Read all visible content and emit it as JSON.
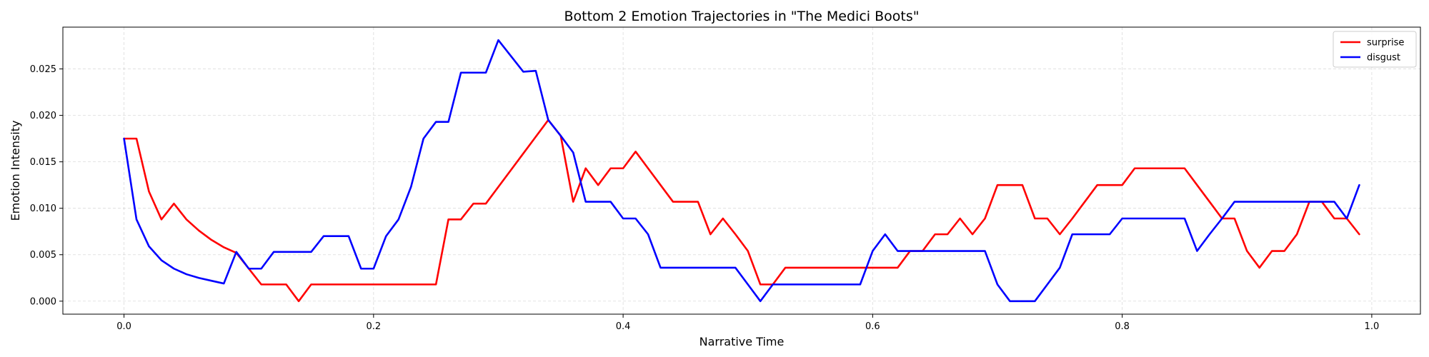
{
  "chart_data": {
    "type": "line",
    "title": "Bottom 2 Emotion Trajectories in \"The Medici Boots\"",
    "xlabel": "Narrative Time",
    "ylabel": "Emotion Intensity",
    "xlim": [
      -0.049,
      1.039
    ],
    "ylim": [
      -0.0014,
      0.0295
    ],
    "xticks": [
      0.0,
      0.2,
      0.4,
      0.6,
      0.8,
      1.0
    ],
    "xtick_labels": [
      "0.0",
      "0.2",
      "0.4",
      "0.6",
      "0.8",
      "1.0"
    ],
    "yticks": [
      0.0,
      0.005,
      0.01,
      0.015,
      0.02,
      0.025
    ],
    "ytick_labels": [
      "0.000",
      "0.005",
      "0.010",
      "0.015",
      "0.020",
      "0.025"
    ],
    "grid": true,
    "legend_position": "top-right",
    "x": [
      0.0,
      0.01,
      0.02,
      0.03,
      0.04,
      0.05,
      0.06,
      0.07,
      0.08,
      0.09,
      0.1,
      0.11,
      0.12,
      0.13,
      0.14,
      0.15,
      0.16,
      0.17,
      0.18,
      0.19,
      0.2,
      0.21,
      0.22,
      0.23,
      0.24,
      0.25,
      0.26,
      0.27,
      0.28,
      0.29,
      0.3,
      0.31,
      0.32,
      0.33,
      0.34,
      0.35,
      0.36,
      0.37,
      0.38,
      0.39,
      0.4,
      0.41,
      0.42,
      0.43,
      0.44,
      0.45,
      0.46,
      0.47,
      0.48,
      0.49,
      0.5,
      0.51,
      0.52,
      0.53,
      0.54,
      0.55,
      0.56,
      0.57,
      0.58,
      0.59,
      0.6,
      0.61,
      0.62,
      0.63,
      0.64,
      0.65,
      0.66,
      0.67,
      0.68,
      0.69,
      0.7,
      0.71,
      0.72,
      0.73,
      0.74,
      0.75,
      0.76,
      0.77,
      0.78,
      0.79,
      0.8,
      0.81,
      0.82,
      0.83,
      0.84,
      0.85,
      0.86,
      0.87,
      0.88,
      0.89,
      0.9,
      0.91,
      0.92,
      0.93,
      0.94,
      0.95,
      0.96,
      0.97,
      0.98,
      0.99
    ],
    "series": [
      {
        "name": "surprise",
        "color": "#ff0000",
        "values": [
          0.0175,
          0.0175,
          0.0118,
          0.0088,
          0.0105,
          0.0088,
          0.0076,
          0.0066,
          0.0058,
          0.0052,
          0.0035,
          0.0018,
          0.0018,
          0.0018,
          0.0,
          0.0018,
          0.0018,
          0.0018,
          0.0018,
          0.0018,
          0.0018,
          0.0018,
          0.0018,
          0.0018,
          0.0018,
          0.0018,
          0.0088,
          0.0088,
          0.0105,
          0.0105,
          0.0123,
          0.0141,
          0.0159,
          0.0177,
          0.0195,
          0.0178,
          0.0107,
          0.0143,
          0.0125,
          0.0143,
          0.0143,
          0.0161,
          0.0143,
          0.0125,
          0.0107,
          0.0107,
          0.0107,
          0.0072,
          0.0089,
          0.0072,
          0.0054,
          0.0018,
          0.0018,
          0.0036,
          0.0036,
          0.0036,
          0.0036,
          0.0036,
          0.0036,
          0.0036,
          0.0036,
          0.0036,
          0.0036,
          0.0054,
          0.0054,
          0.0072,
          0.0072,
          0.0089,
          0.0072,
          0.0089,
          0.0125,
          0.0125,
          0.0125,
          0.0089,
          0.0089,
          0.0072,
          0.0089,
          0.0107,
          0.0125,
          0.0125,
          0.0125,
          0.0143,
          0.0143,
          0.0143,
          0.0143,
          0.0143,
          0.0125,
          0.0107,
          0.0089,
          0.0089,
          0.0054,
          0.0036,
          0.0054,
          0.0054,
          0.0072,
          0.0107,
          0.0107,
          0.0089,
          0.0089,
          0.0072
        ]
      },
      {
        "name": "disgust",
        "color": "#0000ff",
        "values": [
          0.0175,
          0.0088,
          0.0059,
          0.0044,
          0.0035,
          0.0029,
          0.0025,
          0.0022,
          0.0019,
          0.0053,
          0.0035,
          0.0035,
          0.0053,
          0.0053,
          0.0053,
          0.0053,
          0.007,
          0.007,
          0.007,
          0.0035,
          0.0035,
          0.007,
          0.0088,
          0.0123,
          0.0175,
          0.0193,
          0.0193,
          0.0246,
          0.0246,
          0.0246,
          0.0281,
          0.0264,
          0.0247,
          0.0248,
          0.0195,
          0.0178,
          0.016,
          0.0107,
          0.0107,
          0.0107,
          0.0089,
          0.0089,
          0.0072,
          0.0036,
          0.0036,
          0.0036,
          0.0036,
          0.0036,
          0.0036,
          0.0036,
          0.0018,
          0.0,
          0.0018,
          0.0018,
          0.0018,
          0.0018,
          0.0018,
          0.0018,
          0.0018,
          0.0018,
          0.0054,
          0.0072,
          0.0054,
          0.0054,
          0.0054,
          0.0054,
          0.0054,
          0.0054,
          0.0054,
          0.0054,
          0.0018,
          0.0,
          0.0,
          0.0,
          0.0018,
          0.0036,
          0.0072,
          0.0072,
          0.0072,
          0.0072,
          0.0089,
          0.0089,
          0.0089,
          0.0089,
          0.0089,
          0.0089,
          0.0054,
          0.0072,
          0.0089,
          0.0107,
          0.0107,
          0.0107,
          0.0107,
          0.0107,
          0.0107,
          0.0107,
          0.0107,
          0.0107,
          0.0089,
          0.0125
        ]
      }
    ]
  }
}
